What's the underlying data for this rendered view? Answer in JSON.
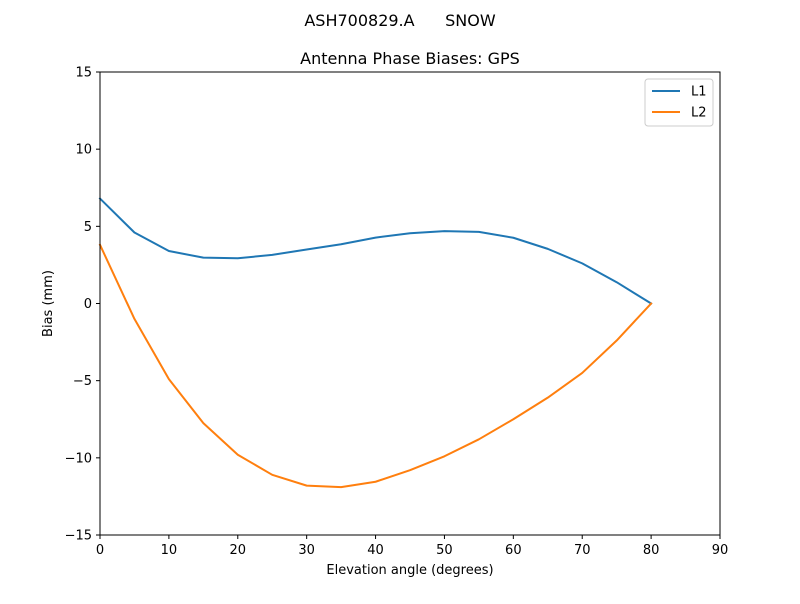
{
  "chart_data": {
    "type": "line",
    "suptitle": "ASH700829.A      SNOW",
    "title": "Antenna Phase Biases: GPS",
    "xlabel": "Elevation angle (degrees)",
    "ylabel": "Bias (mm)",
    "xlim": [
      0,
      90
    ],
    "ylim": [
      -15,
      15
    ],
    "xticks": [
      0,
      10,
      20,
      30,
      40,
      50,
      60,
      70,
      80,
      90
    ],
    "yticks": [
      -15,
      -10,
      -5,
      0,
      5,
      10,
      15
    ],
    "xtick_labels": [
      "0",
      "10",
      "20",
      "30",
      "40",
      "50",
      "60",
      "70",
      "80",
      "90"
    ],
    "ytick_labels": [
      "−15",
      "−10",
      "−5",
      "0",
      "5",
      "10",
      "15"
    ],
    "legend_position": "top-right",
    "grid": false,
    "x": [
      0,
      5,
      10,
      15,
      20,
      25,
      30,
      35,
      40,
      45,
      50,
      55,
      60,
      65,
      70,
      75,
      80
    ],
    "series": [
      {
        "name": "L1",
        "color": "#1f77b4",
        "values": [
          6.8,
          4.6,
          3.4,
          2.97,
          2.93,
          3.15,
          3.5,
          3.84,
          4.27,
          4.55,
          4.69,
          4.64,
          4.26,
          3.54,
          2.6,
          1.38,
          0.0
        ]
      },
      {
        "name": "L2",
        "color": "#ff7f0e",
        "values": [
          3.8,
          -1.0,
          -4.9,
          -7.75,
          -9.8,
          -11.1,
          -11.8,
          -11.9,
          -11.55,
          -10.8,
          -9.9,
          -8.8,
          -7.5,
          -6.1,
          -4.5,
          -2.4,
          0.0
        ]
      }
    ]
  }
}
